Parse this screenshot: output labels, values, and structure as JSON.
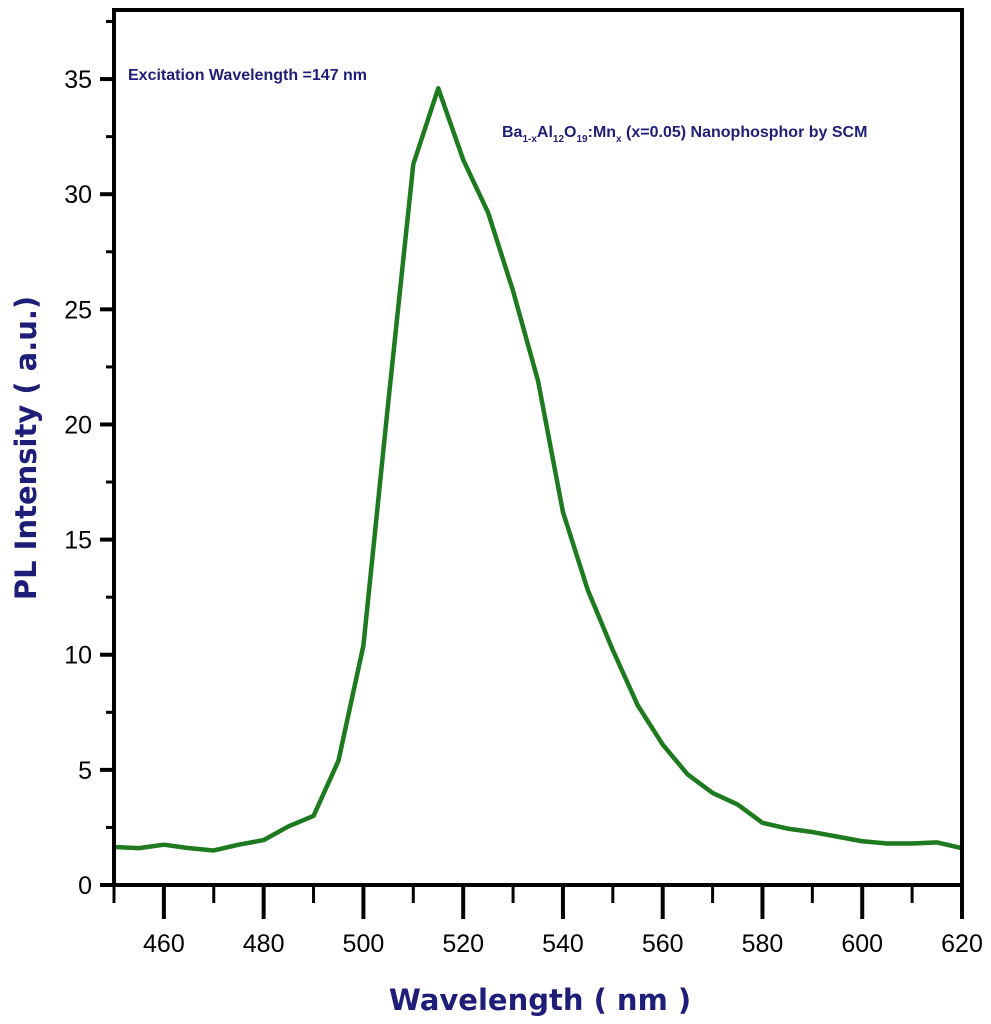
{
  "chart_data": {
    "type": "line",
    "title": "",
    "xlabel": "Wavelength ( nm )",
    "ylabel": "PL Intensity ( a.u.)",
    "xlim": [
      450,
      620
    ],
    "ylim": [
      0,
      38
    ],
    "xticks": [
      460,
      480,
      500,
      520,
      540,
      560,
      580,
      600,
      620
    ],
    "yticks": [
      0,
      5,
      10,
      15,
      20,
      25,
      30,
      35
    ],
    "grid": false,
    "legend": "none",
    "annotations": {
      "excitation": "Excitation Wavelength =147 nm",
      "sample": {
        "parts": [
          "Ba",
          "1-x",
          "Al",
          "12",
          "O",
          "19",
          ":Mn",
          "x",
          " (x=0.05) Nanophosphor by SCM"
        ]
      }
    },
    "series": [
      {
        "name": "Ba1-xAl12O19:Mnx (x=0.05)",
        "color": "#1e7a1e",
        "x": [
          450,
          455,
          460,
          465,
          470,
          475,
          480,
          485,
          490,
          495,
          500,
          505,
          510,
          515,
          520,
          525,
          530,
          535,
          540,
          545,
          550,
          555,
          560,
          565,
          570,
          575,
          580,
          585,
          590,
          595,
          600,
          605,
          610,
          615,
          620
        ],
        "y": [
          1.65,
          1.6,
          1.75,
          1.6,
          1.5,
          1.75,
          1.95,
          2.55,
          3.0,
          5.4,
          10.4,
          21.0,
          31.3,
          34.6,
          31.5,
          29.2,
          25.8,
          21.9,
          16.2,
          12.8,
          10.2,
          7.8,
          6.1,
          4.8,
          4.0,
          3.5,
          2.7,
          2.45,
          2.3,
          2.1,
          1.9,
          1.8,
          1.8,
          1.85,
          1.6
        ]
      }
    ]
  }
}
